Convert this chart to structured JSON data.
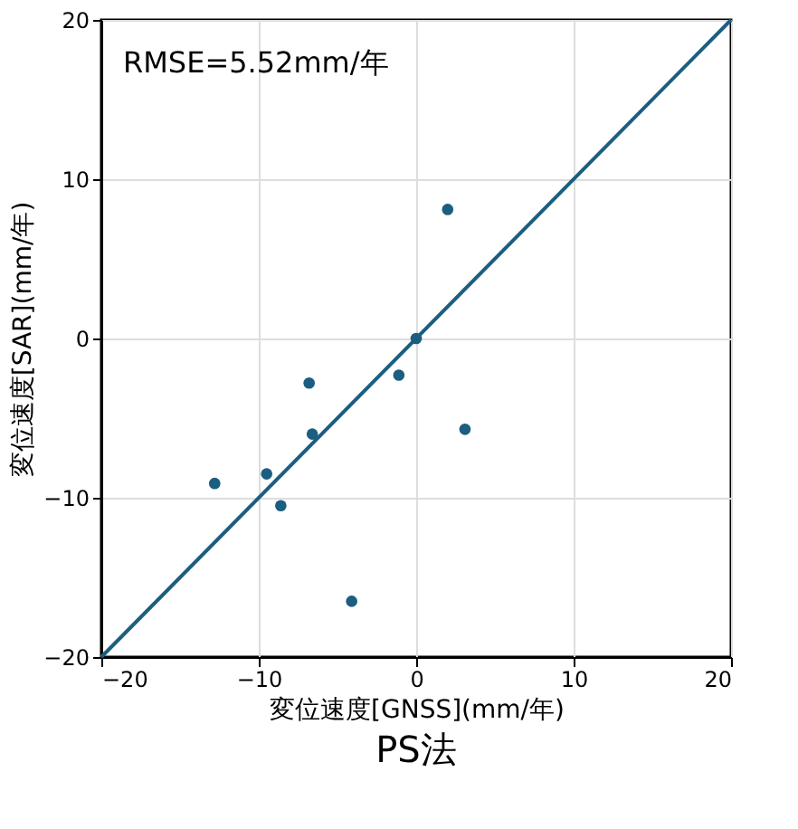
{
  "chart_data": {
    "type": "scatter",
    "title": "PS法",
    "xlabel": "変位速度[GNSS](mm/年)",
    "ylabel": "変位速度[SAR](mm/年)",
    "annotations": [
      "RMSE=5.52mm/年"
    ],
    "series": [
      {
        "color": "#1b5e80",
        "marker": "circle",
        "x": [
          -12.8,
          -9.5,
          -8.6,
          -6.8,
          -6.6,
          -4.1,
          -1.1,
          0,
          2.0,
          3.1
        ],
        "values": [
          -9.1,
          -8.5,
          -10.5,
          -2.8,
          -6.0,
          -16.5,
          -2.3,
          0,
          8.1,
          -5.7
        ]
      },
      {
        "type": "line",
        "color": "#1b5e80",
        "x": [
          -20,
          20
        ],
        "values": [
          -20,
          20
        ]
      }
    ],
    "xlim": [
      -20,
      20
    ],
    "ylim": [
      -20,
      20
    ],
    "xticks": [
      -20,
      -10,
      0,
      10,
      20
    ],
    "yticks": [
      -20,
      -10,
      0,
      10,
      20
    ],
    "grid": true
  }
}
